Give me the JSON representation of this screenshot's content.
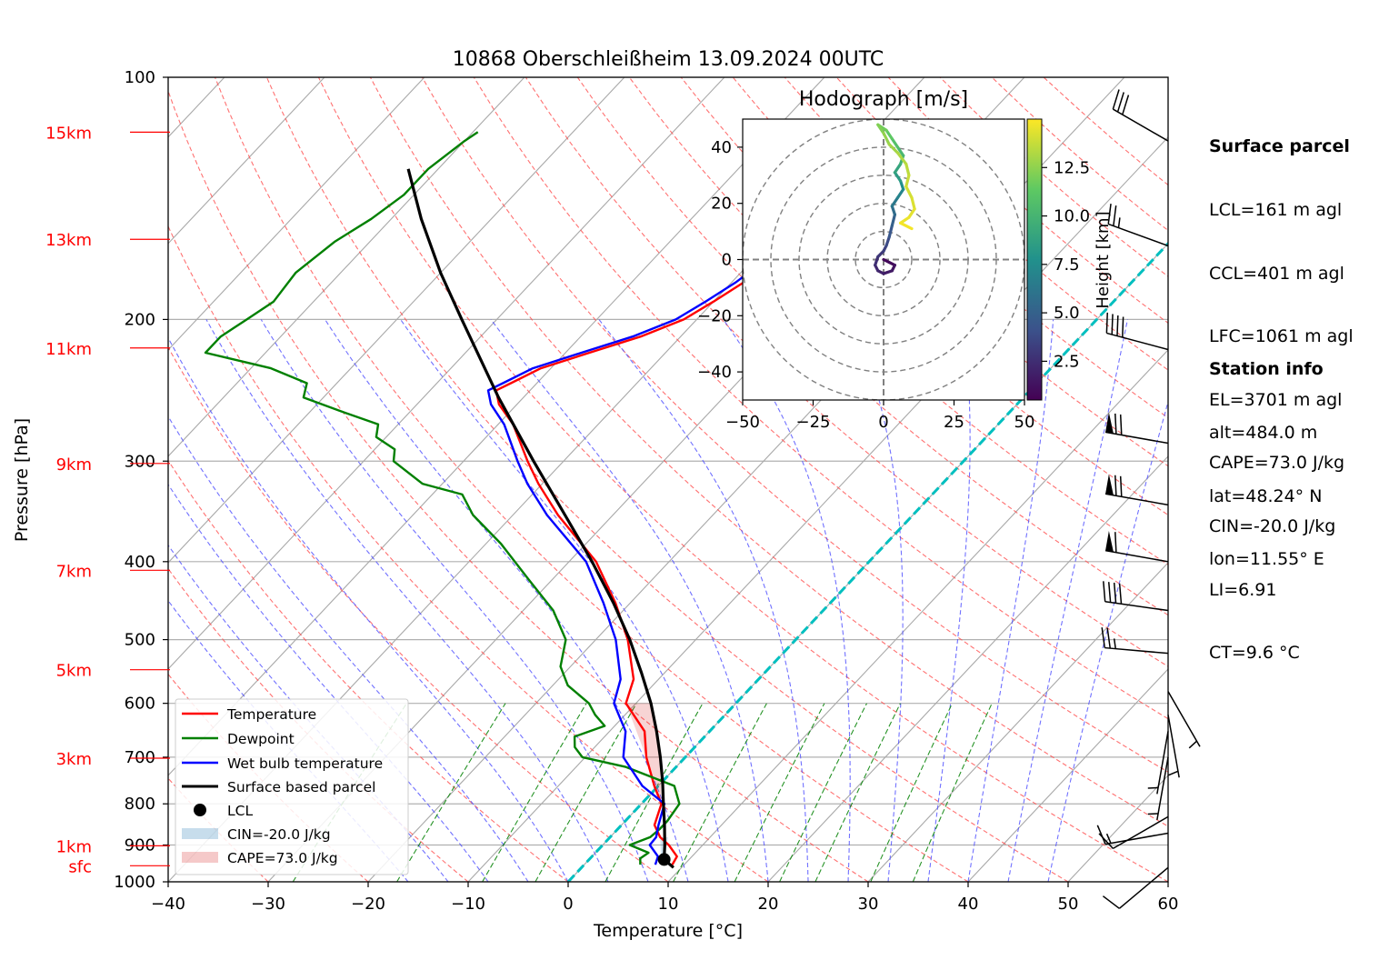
{
  "title": "10868 Oberschleißheim 13.09.2024 00UTC",
  "chart_data": {
    "type": "line",
    "title": "10868 Oberschleißheim 13.09.2024 00UTC",
    "xlabel": "Temperature [°C]",
    "ylabel": "Pressure [hPa]",
    "xlim": [
      -40,
      60
    ],
    "ylim": [
      1000,
      100
    ],
    "y_scale": "log",
    "x_ticks": [
      -40,
      -30,
      -20,
      -10,
      0,
      10,
      20,
      30,
      40,
      50,
      60
    ],
    "y_ticks": [
      100,
      200,
      300,
      400,
      500,
      600,
      700,
      800,
      900,
      1000
    ],
    "skew": true,
    "grid": true,
    "height_labels": [
      {
        "label": "sfc",
        "p": 955
      },
      {
        "label": "1km",
        "p": 902
      },
      {
        "label": "3km",
        "p": 702
      },
      {
        "label": "5km",
        "p": 545
      },
      {
        "label": "7km",
        "p": 410
      },
      {
        "label": "9km",
        "p": 302
      },
      {
        "label": "11km",
        "p": 217
      },
      {
        "label": "13km",
        "p": 159
      },
      {
        "label": "15km",
        "p": 117
      }
    ],
    "series": [
      {
        "name": "Temperature",
        "color": "#ff0000",
        "points": [
          [
            952,
            8.8
          ],
          [
            930,
            8.5
          ],
          [
            900,
            6.6
          ],
          [
            880,
            5.0
          ],
          [
            850,
            3.3
          ],
          [
            800,
            2.0
          ],
          [
            760,
            -0.4
          ],
          [
            700,
            -3.9
          ],
          [
            650,
            -6.5
          ],
          [
            600,
            -11.0
          ],
          [
            560,
            -12.5
          ],
          [
            500,
            -16.8
          ],
          [
            450,
            -21.5
          ],
          [
            400,
            -27.3
          ],
          [
            350,
            -35.5
          ],
          [
            320,
            -40.4
          ],
          [
            300,
            -43.6
          ],
          [
            270,
            -48.5
          ],
          [
            255,
            -51.8
          ],
          [
            245,
            -53.4
          ],
          [
            240,
            -52.6
          ],
          [
            230,
            -51.0
          ],
          [
            220,
            -47.6
          ],
          [
            210,
            -44.0
          ],
          [
            200,
            -41.3
          ],
          [
            190,
            -40.0
          ],
          [
            180,
            -38.8
          ],
          [
            170,
            -38.0
          ],
          [
            160,
            -37.4
          ],
          [
            150,
            -36.6
          ],
          [
            140,
            -36.4
          ],
          [
            130,
            -35.6
          ],
          [
            120,
            -35.0
          ],
          [
            118,
            -34.4
          ]
        ]
      },
      {
        "name": "Dewpoint",
        "color": "#008000",
        "points": [
          [
            952,
            5.6
          ],
          [
            935,
            5.0
          ],
          [
            920,
            5.3
          ],
          [
            900,
            2.7
          ],
          [
            880,
            4.0
          ],
          [
            860,
            4.2
          ],
          [
            840,
            4.2
          ],
          [
            800,
            3.8
          ],
          [
            760,
            1.6
          ],
          [
            720,
            -5.0
          ],
          [
            700,
            -10.3
          ],
          [
            680,
            -12.0
          ],
          [
            660,
            -13.0
          ],
          [
            640,
            -11.0
          ],
          [
            620,
            -13.0
          ],
          [
            600,
            -14.7
          ],
          [
            570,
            -18.5
          ],
          [
            540,
            -21.0
          ],
          [
            500,
            -23.0
          ],
          [
            460,
            -27.0
          ],
          [
            420,
            -32.5
          ],
          [
            380,
            -38.5
          ],
          [
            350,
            -44.0
          ],
          [
            330,
            -47.0
          ],
          [
            320,
            -52.0
          ],
          [
            300,
            -57.0
          ],
          [
            290,
            -58.0
          ],
          [
            280,
            -61.0
          ],
          [
            270,
            -62.0
          ],
          [
            260,
            -67.0
          ],
          [
            250,
            -72.0
          ],
          [
            240,
            -73.0
          ],
          [
            230,
            -78.0
          ],
          [
            220,
            -86.0
          ],
          [
            210,
            -86.0
          ],
          [
            200,
            -85.0
          ],
          [
            190,
            -84.0
          ],
          [
            175,
            -84.5
          ],
          [
            160,
            -83.5
          ],
          [
            150,
            -82.0
          ],
          [
            140,
            -81.0
          ],
          [
            130,
            -81.0
          ],
          [
            120,
            -80.0
          ],
          [
            117,
            -79.5
          ]
        ]
      },
      {
        "name": "Wet bulb temperature",
        "color": "#0000ff",
        "points": [
          [
            952,
            7.1
          ],
          [
            930,
            6.6
          ],
          [
            900,
            4.7
          ],
          [
            880,
            4.6
          ],
          [
            850,
            3.7
          ],
          [
            800,
            2.3
          ],
          [
            760,
            -1.6
          ],
          [
            700,
            -6.2
          ],
          [
            650,
            -8.4
          ],
          [
            600,
            -12.2
          ],
          [
            560,
            -13.8
          ],
          [
            500,
            -18.0
          ],
          [
            450,
            -22.7
          ],
          [
            400,
            -28.3
          ],
          [
            350,
            -36.6
          ],
          [
            320,
            -41.5
          ],
          [
            300,
            -44.6
          ],
          [
            270,
            -49.4
          ],
          [
            255,
            -52.6
          ],
          [
            245,
            -54.2
          ],
          [
            240,
            -53.4
          ],
          [
            230,
            -51.8
          ],
          [
            220,
            -48.4
          ],
          [
            210,
            -44.8
          ],
          [
            200,
            -42.1
          ],
          [
            190,
            -40.8
          ],
          [
            180,
            -39.6
          ],
          [
            170,
            -38.8
          ],
          [
            160,
            -38.2
          ],
          [
            150,
            -37.4
          ],
          [
            140,
            -37.2
          ],
          [
            130,
            -36.4
          ],
          [
            120,
            -35.8
          ],
          [
            118,
            -35.2
          ]
        ]
      },
      {
        "name": "Surface based parcel",
        "color": "#000000",
        "points": [
          [
            960,
            9.2
          ],
          [
            938,
            7.5
          ],
          [
            900,
            6.2
          ],
          [
            850,
            4.3
          ],
          [
            800,
            2.2
          ],
          [
            750,
            0.0
          ],
          [
            700,
            -2.5
          ],
          [
            650,
            -5.3
          ],
          [
            600,
            -8.5
          ],
          [
            550,
            -12.3
          ],
          [
            500,
            -16.6
          ],
          [
            450,
            -21.7
          ],
          [
            400,
            -27.7
          ],
          [
            350,
            -34.8
          ],
          [
            300,
            -43.0
          ],
          [
            250,
            -52.5
          ],
          [
            200,
            -63.5
          ],
          [
            175,
            -70.0
          ],
          [
            150,
            -77.0
          ],
          [
            130,
            -83.0
          ]
        ]
      }
    ],
    "lcl_point": [
      938,
      7.5
    ],
    "legend": {
      "placement": "lower-left",
      "entries": [
        "Temperature",
        "Dewpoint",
        "Wet bulb temperature",
        "Surface based parcel",
        "LCL",
        "CIN=-20.0 J/kg",
        "CAPE=73.0 J/kg"
      ]
    },
    "hodograph": {
      "type": "line",
      "title": "Hodograph [m/s]",
      "xlim": [
        -50,
        50
      ],
      "ylim": [
        -50,
        50
      ],
      "x_ticks": [
        -50,
        -25,
        0,
        25,
        50
      ],
      "y_ticks": [
        -40,
        -20,
        0,
        20,
        40
      ],
      "rings": [
        10,
        20,
        30,
        40,
        50
      ],
      "colorbar_label": "Height [km]",
      "colorbar_range": [
        0.5,
        15
      ],
      "colorbar_ticks": [
        2.5,
        5.0,
        7.5,
        10.0,
        12.5
      ],
      "points": [
        [
          0,
          0,
          0.5
        ],
        [
          2,
          -1,
          0.8
        ],
        [
          4,
          -2,
          1.0
        ],
        [
          3,
          -4,
          1.3
        ],
        [
          0,
          -5,
          1.6
        ],
        [
          -2,
          -4,
          1.9
        ],
        [
          -3,
          -2,
          2.2
        ],
        [
          -2,
          1,
          2.5
        ],
        [
          0,
          3,
          2.9
        ],
        [
          1,
          5,
          3.3
        ],
        [
          2,
          8,
          3.8
        ],
        [
          3,
          12,
          4.4
        ],
        [
          4,
          16,
          5.0
        ],
        [
          3,
          19,
          5.6
        ],
        [
          5,
          22,
          6.3
        ],
        [
          7,
          25,
          7.0
        ],
        [
          6,
          28,
          7.7
        ],
        [
          4,
          31,
          8.4
        ],
        [
          6,
          34,
          9.0
        ],
        [
          7,
          37,
          9.6
        ],
        [
          5,
          40,
          10.2
        ],
        [
          3,
          43,
          10.8
        ],
        [
          1,
          46,
          11.3
        ],
        [
          -2,
          48,
          11.8
        ],
        [
          0,
          45,
          12.2
        ],
        [
          2,
          41,
          12.6
        ],
        [
          5,
          38,
          12.9
        ],
        [
          8,
          34,
          13.2
        ],
        [
          9,
          30,
          13.5
        ],
        [
          8,
          26,
          13.8
        ],
        [
          10,
          22,
          14.0
        ],
        [
          11,
          18,
          14.2
        ],
        [
          9,
          15,
          14.4
        ],
        [
          6,
          13,
          14.6
        ],
        [
          10,
          11,
          14.8
        ]
      ]
    },
    "wind_barbs": [
      {
        "p": 960,
        "dir": 230,
        "kt": 10
      },
      {
        "p": 870,
        "dir": 260,
        "kt": 15
      },
      {
        "p": 830,
        "dir": 240,
        "kt": 10
      },
      {
        "p": 700,
        "dir": 190,
        "kt": 5
      },
      {
        "p": 650,
        "dir": 190,
        "kt": 5
      },
      {
        "p": 620,
        "dir": 170,
        "kt": 5
      },
      {
        "p": 580,
        "dir": 150,
        "kt": 5
      },
      {
        "p": 520,
        "dir": 275,
        "kt": 25
      },
      {
        "p": 460,
        "dir": 278,
        "kt": 40
      },
      {
        "p": 400,
        "dir": 280,
        "kt": 60
      },
      {
        "p": 340,
        "dir": 280,
        "kt": 70
      },
      {
        "p": 285,
        "dir": 280,
        "kt": 70
      },
      {
        "p": 218,
        "dir": 285,
        "kt": 40
      },
      {
        "p": 162,
        "dir": 290,
        "kt": 25
      },
      {
        "p": 120,
        "dir": 300,
        "kt": 30
      }
    ]
  },
  "info": {
    "surface_header": "Surface parcel",
    "surface_lines": [
      "LCL=161 m agl",
      "CCL=401 m agl",
      "LFC=1061 m agl",
      "EL=3701 m agl",
      "CAPE=73.0 J/kg",
      "CIN=-20.0 J/kg",
      "LI=6.91",
      "CT=9.6 °C"
    ],
    "station_header": "Station info",
    "station_lines": [
      "alt=484.0 m",
      "lat=48.24° N",
      "lon=11.55° E"
    ]
  }
}
